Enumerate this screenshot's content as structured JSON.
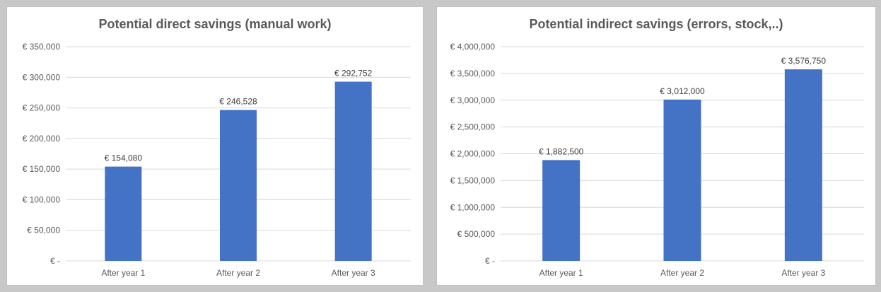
{
  "chart_data": [
    {
      "type": "bar",
      "title": "Potential direct savings (manual work)",
      "categories": [
        "After year 1",
        "After year 2",
        "After year 3"
      ],
      "values": [
        154080,
        246528,
        292752
      ],
      "value_labels": [
        "€ 154,080",
        "€ 246,528",
        "€ 292,752"
      ],
      "ylim": [
        0,
        350000
      ],
      "y_ticks": [
        0,
        50000,
        100000,
        150000,
        200000,
        250000,
        300000,
        350000
      ],
      "y_tick_labels": [
        "€ -",
        "€ 50,000",
        "€ 100,000",
        "€ 150,000",
        "€ 200,000",
        "€ 250,000",
        "€ 300,000",
        "€ 350,000"
      ],
      "xlabel": "",
      "ylabel": "",
      "grid": true,
      "legend": "none",
      "bar_color": "#4472c4"
    },
    {
      "type": "bar",
      "title": "Potential indirect savings (errors, stock,..)",
      "categories": [
        "After year 1",
        "After year 2",
        "After year 3"
      ],
      "values": [
        1882500,
        3012000,
        3576750
      ],
      "value_labels": [
        "€ 1,882,500",
        "€ 3,012,000",
        "€ 3,576,750"
      ],
      "ylim": [
        0,
        4000000
      ],
      "y_ticks": [
        0,
        500000,
        1000000,
        1500000,
        2000000,
        2500000,
        3000000,
        3500000,
        4000000
      ],
      "y_tick_labels": [
        "€ -",
        "€ 500,000",
        "€ 1,000,000",
        "€ 1,500,000",
        "€ 2,000,000",
        "€ 2,500,000",
        "€ 3,000,000",
        "€ 3,500,000",
        "€ 4,000,000"
      ],
      "xlabel": "",
      "ylabel": "",
      "grid": true,
      "legend": "none",
      "bar_color": "#4472c4"
    }
  ]
}
